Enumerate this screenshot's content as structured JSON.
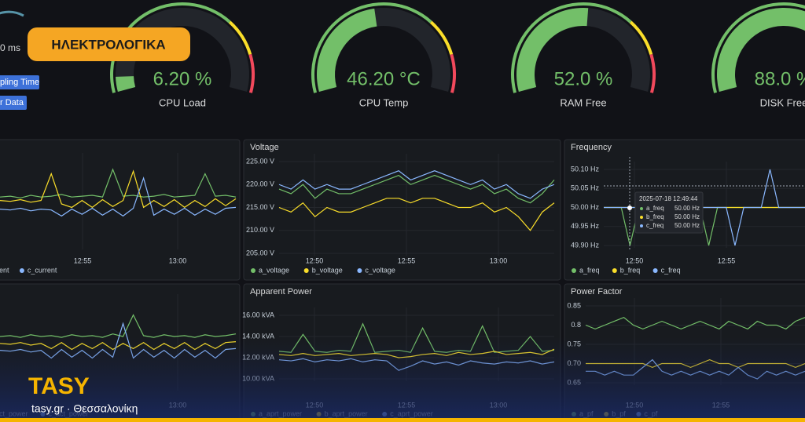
{
  "badge": "ΗΛΕΚΤΡΟΛΟΓΙΚΑ",
  "sidebar": {
    "value_text": "0 ms",
    "buttons": [
      "pling Time",
      "r Data"
    ]
  },
  "gauges": [
    {
      "label": "CPU Load",
      "value": 6.2,
      "value_label": "6.20 %",
      "min": 0,
      "max": 100
    },
    {
      "label": "CPU Temp",
      "value": 46.2,
      "value_label": "46.20 °C",
      "min": 0,
      "max": 100
    },
    {
      "label": "RAM Free",
      "value": 52.0,
      "value_label": "52.0 %",
      "min": 0,
      "max": 100
    },
    {
      "label": "DISK Free",
      "value": 88.0,
      "value_label": "88.0 %",
      "min": 0,
      "max": 100
    }
  ],
  "panels": [
    {
      "ylim": [
        0,
        10
      ],
      "yticks": [],
      "xtick_labels": [
        "12:55",
        "13:00"
      ],
      "series": [
        {
          "color": "#73bf69",
          "values": [
            5.8,
            5.9,
            5.7,
            6.0,
            5.8,
            5.9,
            6.1,
            5.8,
            5.9,
            6.0,
            5.8,
            9.0,
            5.9,
            6.0,
            5.8,
            5.9,
            6.1,
            5.8,
            5.9,
            6.0,
            8.5,
            5.9,
            6.0,
            5.8
          ]
        },
        {
          "name": "ent",
          "color": "#fade2a",
          "values": [
            5.4,
            5.3,
            5.5,
            5.2,
            5.4,
            8.5,
            5.0,
            4.6,
            5.4,
            4.6,
            5.5,
            4.7,
            5.4,
            8.8,
            4.6,
            5.4,
            4.7,
            5.5,
            4.6,
            5.4,
            4.7,
            5.6,
            4.8,
            5.6
          ]
        },
        {
          "name": "c_current",
          "color": "#8ab8ff",
          "values": [
            4.4,
            4.3,
            4.5,
            4.2,
            4.4,
            4.3,
            3.6,
            4.4,
            3.8,
            4.5,
            3.7,
            4.4,
            3.6,
            4.5,
            8.0,
            3.7,
            4.4,
            3.8,
            4.5,
            3.7,
            4.4,
            3.8,
            4.5,
            4.6
          ]
        }
      ]
    },
    {
      "title": "Voltage",
      "ylim": [
        205,
        225
      ],
      "yticks": [
        {
          "value": 225,
          "label": "225.00 V"
        },
        {
          "value": 220,
          "label": "220.00 V"
        },
        {
          "value": 215,
          "label": "215.00 V"
        },
        {
          "value": 210,
          "label": "210.00 V"
        },
        {
          "value": 205,
          "label": "205.00 V"
        }
      ],
      "xtick_labels": [
        "12:50",
        "12:55",
        "13:00"
      ],
      "series": [
        {
          "name": "a_voltage",
          "color": "#73bf69",
          "values": [
            219,
            218,
            220,
            217,
            219,
            218,
            218,
            219,
            220,
            221,
            222,
            220,
            221,
            222,
            221,
            220,
            219,
            220,
            218,
            219,
            217,
            216,
            218,
            221
          ]
        },
        {
          "name": "b_voltage",
          "color": "#fade2a",
          "values": [
            215,
            214,
            216,
            213,
            215,
            214,
            214,
            215,
            216,
            217,
            217,
            216,
            217,
            217,
            216,
            215,
            215,
            216,
            214,
            215,
            213,
            210,
            214,
            216
          ]
        },
        {
          "name": "c_voltage",
          "color": "#8ab8ff",
          "values": [
            220,
            219,
            221,
            219,
            220,
            219,
            219,
            220,
            221,
            222,
            223,
            221,
            222,
            223,
            222,
            221,
            220,
            221,
            219,
            220,
            218,
            217,
            219,
            220
          ]
        }
      ]
    },
    {
      "title": "Frequency",
      "ylim": [
        49.9,
        50.1
      ],
      "yticks": [
        {
          "value": 50.1,
          "label": "50.10 Hz"
        },
        {
          "value": 50.05,
          "label": "50.05 Hz"
        },
        {
          "value": 50,
          "label": "50.00 Hz"
        },
        {
          "value": 49.95,
          "label": "49.95 Hz"
        },
        {
          "value": 49.9,
          "label": "49.90 Hz"
        }
      ],
      "xtick_labels": [
        "12:50",
        "12:55"
      ],
      "series": [
        {
          "name": "a_freq",
          "color": "#73bf69",
          "values": [
            50,
            50,
            50,
            49.9,
            50,
            50,
            50,
            50,
            50,
            50,
            50,
            50,
            49.9,
            50,
            50,
            50,
            50,
            50,
            50,
            50,
            50,
            50,
            50,
            50
          ]
        },
        {
          "name": "b_freq",
          "color": "#fade2a",
          "values": [
            50,
            50,
            50,
            50,
            50,
            50,
            50,
            50,
            50,
            50,
            50,
            50,
            50,
            50,
            50,
            50,
            50,
            50,
            50,
            50,
            50,
            50,
            50,
            50
          ]
        },
        {
          "name": "c_freq",
          "color": "#8ab8ff",
          "values": [
            50,
            50,
            50,
            50,
            50,
            50,
            50,
            50,
            50,
            50,
            50,
            50,
            50,
            50,
            50,
            49.9,
            50,
            50,
            50,
            50.1,
            50,
            50,
            50,
            50
          ]
        }
      ]
    },
    {
      "ylim": [
        0,
        10
      ],
      "yticks": [],
      "xtick_labels": [
        "13:00"
      ],
      "series": [
        {
          "color": "#73bf69",
          "values": [
            6.0,
            6.1,
            5.9,
            6.2,
            6.0,
            6.1,
            5.9,
            6.2,
            6.0,
            6.1,
            5.9,
            6.3,
            6.0,
            8.5,
            6.1,
            5.9,
            6.2,
            6.0,
            6.1,
            5.9,
            6.2,
            6.0,
            6.1,
            6.3
          ]
        },
        {
          "name": "ct_power",
          "color": "#fade2a",
          "values": [
            5.2,
            5.1,
            5.3,
            5.0,
            5.2,
            4.6,
            5.3,
            4.5,
            5.2,
            4.6,
            5.3,
            4.5,
            5.2,
            4.6,
            5.3,
            4.5,
            5.2,
            4.6,
            5.3,
            4.5,
            5.2,
            4.6,
            5.3,
            5.4
          ]
        },
        {
          "name": "c_act_power",
          "color": "#8ab8ff",
          "values": [
            4.4,
            4.3,
            4.5,
            4.2,
            4.4,
            3.5,
            4.5,
            3.6,
            4.4,
            3.5,
            4.5,
            3.6,
            7.5,
            3.5,
            4.5,
            3.6,
            4.4,
            3.5,
            4.5,
            3.6,
            4.4,
            3.5,
            4.5,
            4.6
          ]
        }
      ]
    },
    {
      "title": "Apparent Power",
      "ylim": [
        10,
        16
      ],
      "yticks": [
        {
          "value": 16,
          "label": "16.00 kVA"
        },
        {
          "value": 14,
          "label": "14.00 kVA"
        },
        {
          "value": 12,
          "label": "12.00 kVA"
        },
        {
          "value": 10,
          "label": "10.00 kVA"
        }
      ],
      "xtick_labels": [
        "12:50",
        "12:55",
        "13:00"
      ],
      "series": [
        {
          "name": "a_aprt_power",
          "color": "#73bf69",
          "values": [
            12.6,
            12.5,
            14.2,
            12.6,
            12.5,
            12.7,
            12.6,
            15.2,
            12.5,
            12.6,
            12.7,
            12.5,
            14.8,
            12.6,
            12.5,
            12.7,
            12.6,
            15.0,
            12.5,
            12.6,
            12.7,
            14.0,
            12.6,
            12.7
          ]
        },
        {
          "name": "b_aprt_power",
          "color": "#fade2a",
          "values": [
            12.3,
            12.2,
            12.4,
            12.2,
            12.3,
            12.4,
            12.2,
            12.3,
            12.4,
            12.3,
            12.0,
            12.1,
            12.3,
            12.4,
            12.2,
            12.5,
            12.3,
            12.4,
            12.6,
            12.3,
            12.4,
            12.5,
            12.3,
            12.8
          ]
        },
        {
          "name": "c_aprt_power",
          "color": "#8ab8ff",
          "values": [
            11.8,
            11.7,
            11.9,
            11.6,
            11.8,
            11.7,
            11.9,
            11.6,
            11.8,
            11.7,
            10.8,
            11.2,
            11.7,
            11.4,
            11.6,
            11.3,
            11.7,
            11.5,
            11.4,
            11.6,
            11.5,
            11.7,
            11.4,
            11.6
          ]
        }
      ]
    },
    {
      "title": "Power Factor",
      "ylim": [
        0.65,
        0.85
      ],
      "yticks": [
        0.85,
        0.8,
        {
          "value": 0.75,
          "label": "0.75"
        },
        {
          "value": 0.7,
          "label": "0.70"
        },
        0.65
      ],
      "xtick_labels": [
        "12:50",
        "12:55"
      ],
      "series": [
        {
          "name": "a_pf",
          "color": "#73bf69",
          "values": [
            0.8,
            0.79,
            0.8,
            0.81,
            0.82,
            0.8,
            0.79,
            0.8,
            0.81,
            0.8,
            0.79,
            0.8,
            0.81,
            0.8,
            0.79,
            0.81,
            0.8,
            0.79,
            0.81,
            0.8,
            0.8,
            0.79,
            0.81,
            0.82
          ]
        },
        {
          "name": "b_pf",
          "color": "#fade2a",
          "values": [
            0.7,
            0.7,
            0.7,
            0.7,
            0.7,
            0.7,
            0.7,
            0.69,
            0.7,
            0.7,
            0.7,
            0.69,
            0.7,
            0.71,
            0.7,
            0.7,
            0.69,
            0.7,
            0.7,
            0.7,
            0.7,
            0.7,
            0.69,
            0.7
          ]
        },
        {
          "name": "c_pf",
          "color": "#8ab8ff",
          "values": [
            0.68,
            0.68,
            0.67,
            0.68,
            0.67,
            0.67,
            0.69,
            0.71,
            0.68,
            0.67,
            0.68,
            0.67,
            0.68,
            0.67,
            0.68,
            0.67,
            0.69,
            0.67,
            0.66,
            0.68,
            0.67,
            0.68,
            0.67,
            0.68
          ]
        }
      ]
    }
  ],
  "tooltip": {
    "time": "2025-07-18 12:49:44",
    "rows": [
      {
        "name": "a_freq",
        "value": "50.00 Hz"
      },
      {
        "name": "b_freq",
        "value": "50.00 Hz"
      },
      {
        "name": "c_freq",
        "value": "50.00 Hz"
      }
    ]
  },
  "overlay": {
    "brand": "TASY",
    "subtitle": "tasy.gr · Θεσσαλονίκη"
  }
}
